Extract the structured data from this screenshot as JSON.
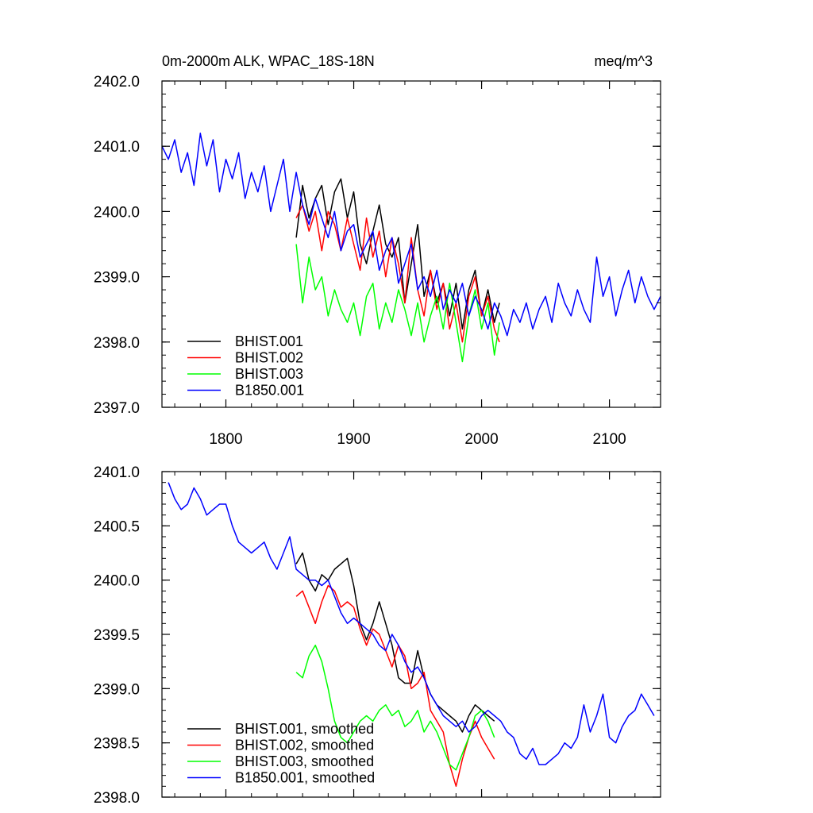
{
  "chart_data": [
    {
      "type": "line",
      "title": "0m-2000m ALK, WPAC_18S-18N",
      "units": "meq/m^3",
      "xlim": [
        1750,
        2140
      ],
      "ylim": [
        2397.0,
        2402.0
      ],
      "x_ticks": [
        1800,
        1900,
        2000,
        2100
      ],
      "x_tick_labels": [
        "1800",
        "1900",
        "2000",
        "2100"
      ],
      "y_ticks": [
        2397.0,
        2398.0,
        2399.0,
        2400.0,
        2401.0,
        2402.0
      ],
      "y_tick_labels": [
        "2397.0",
        "2398.0",
        "2399.0",
        "2400.0",
        "2401.0",
        "2402.0"
      ],
      "legend_position": "bottom-left",
      "series": [
        {
          "name": "BHIST.001",
          "color": "#000000",
          "x": [
            1855,
            1860,
            1865,
            1870,
            1875,
            1880,
            1885,
            1890,
            1895,
            1900,
            1905,
            1910,
            1915,
            1920,
            1925,
            1930,
            1935,
            1940,
            1945,
            1950,
            1955,
            1960,
            1965,
            1970,
            1975,
            1980,
            1985,
            1990,
            1995,
            2000,
            2005,
            2010,
            2014
          ],
          "y": [
            2399.6,
            2400.4,
            2399.9,
            2400.2,
            2400.4,
            2399.8,
            2400.3,
            2400.5,
            2399.9,
            2400.3,
            2399.5,
            2399.2,
            2399.7,
            2400.1,
            2399.5,
            2399.3,
            2399.6,
            2398.6,
            2399.2,
            2399.8,
            2398.7,
            2399.1,
            2398.6,
            2398.9,
            2398.4,
            2398.9,
            2398.2,
            2398.8,
            2399.1,
            2398.4,
            2398.8,
            2398.3,
            2398.6
          ]
        },
        {
          "name": "BHIST.002",
          "color": "#ff0000",
          "x": [
            1855,
            1860,
            1865,
            1870,
            1875,
            1880,
            1885,
            1890,
            1895,
            1900,
            1905,
            1910,
            1915,
            1920,
            1925,
            1930,
            1935,
            1940,
            1945,
            1950,
            1955,
            1960,
            1965,
            1970,
            1975,
            1980,
            1985,
            1990,
            1995,
            2000,
            2005,
            2010,
            2014
          ],
          "y": [
            2399.9,
            2400.1,
            2399.7,
            2400.0,
            2399.4,
            2400.0,
            2399.8,
            2399.4,
            2399.9,
            2399.5,
            2399.1,
            2399.9,
            2399.3,
            2399.7,
            2399.0,
            2399.6,
            2399.2,
            2398.6,
            2399.6,
            2398.8,
            2398.4,
            2399.1,
            2398.5,
            2398.9,
            2398.2,
            2398.6,
            2398.0,
            2398.7,
            2399.0,
            2398.4,
            2398.7,
            2398.2,
            2398.0
          ]
        },
        {
          "name": "BHIST.003",
          "color": "#00ff00",
          "x": [
            1855,
            1860,
            1865,
            1870,
            1875,
            1880,
            1885,
            1890,
            1895,
            1900,
            1905,
            1910,
            1915,
            1920,
            1925,
            1930,
            1935,
            1940,
            1945,
            1950,
            1955,
            1960,
            1965,
            1970,
            1975,
            1980,
            1985,
            1990,
            1995,
            2000,
            2005,
            2010,
            2014
          ],
          "y": [
            2399.5,
            2398.6,
            2399.3,
            2398.8,
            2399.0,
            2398.4,
            2398.8,
            2398.5,
            2398.3,
            2398.6,
            2398.1,
            2398.7,
            2398.9,
            2398.2,
            2398.6,
            2398.3,
            2398.8,
            2398.5,
            2398.1,
            2398.6,
            2398.0,
            2398.4,
            2398.7,
            2398.2,
            2398.9,
            2398.3,
            2397.7,
            2398.4,
            2398.8,
            2398.2,
            2398.6,
            2397.8,
            2398.3
          ]
        },
        {
          "name": "B1850.001",
          "color": "#0000ff",
          "x": [
            1750,
            1755,
            1760,
            1765,
            1770,
            1775,
            1780,
            1785,
            1790,
            1795,
            1800,
            1805,
            1810,
            1815,
            1820,
            1825,
            1830,
            1835,
            1840,
            1845,
            1850,
            1855,
            1860,
            1865,
            1870,
            1875,
            1880,
            1885,
            1890,
            1895,
            1900,
            1905,
            1910,
            1915,
            1920,
            1925,
            1930,
            1935,
            1940,
            1945,
            1950,
            1955,
            1960,
            1965,
            1970,
            1975,
            1980,
            1985,
            1990,
            1995,
            2000,
            2005,
            2010,
            2015,
            2020,
            2025,
            2030,
            2035,
            2040,
            2045,
            2050,
            2055,
            2060,
            2065,
            2070,
            2075,
            2080,
            2085,
            2090,
            2095,
            2100,
            2105,
            2110,
            2115,
            2120,
            2125,
            2130,
            2135,
            2140
          ],
          "y": [
            2401.0,
            2400.8,
            2401.1,
            2400.6,
            2400.9,
            2400.4,
            2401.2,
            2400.7,
            2401.1,
            2400.3,
            2400.8,
            2400.5,
            2400.9,
            2400.2,
            2400.6,
            2400.3,
            2400.7,
            2400.0,
            2400.4,
            2400.8,
            2400.0,
            2400.6,
            2400.1,
            2399.8,
            2400.2,
            2399.9,
            2399.6,
            2400.0,
            2399.4,
            2399.7,
            2399.8,
            2399.3,
            2399.5,
            2399.7,
            2399.1,
            2399.4,
            2399.6,
            2398.9,
            2399.2,
            2399.5,
            2398.8,
            2399.0,
            2398.7,
            2399.1,
            2398.5,
            2398.8,
            2398.6,
            2398.9,
            2398.4,
            2398.7,
            2398.5,
            2398.2,
            2398.6,
            2398.4,
            2398.1,
            2398.5,
            2398.3,
            2398.6,
            2398.2,
            2398.5,
            2398.7,
            2398.3,
            2398.9,
            2398.6,
            2398.4,
            2398.8,
            2398.5,
            2398.3,
            2399.3,
            2398.7,
            2399.0,
            2398.4,
            2398.8,
            2399.1,
            2398.6,
            2399.0,
            2398.7,
            2398.5,
            2398.7
          ]
        }
      ]
    },
    {
      "type": "line",
      "title": "",
      "xlim": [
        1750,
        2140
      ],
      "ylim": [
        2398.0,
        2401.0
      ],
      "x_ticks": [
        1800,
        1900,
        2000,
        2100
      ],
      "y_ticks": [
        2398.0,
        2398.5,
        2399.0,
        2399.5,
        2400.0,
        2400.5,
        2401.0
      ],
      "y_tick_labels": [
        "2398.0",
        "2398.5",
        "2399.0",
        "2399.5",
        "2400.0",
        "2400.5",
        "2401.0"
      ],
      "legend_position": "bottom-left",
      "series": [
        {
          "name": "BHIST.001, smoothed",
          "color": "#000000",
          "x": [
            1855,
            1860,
            1865,
            1870,
            1875,
            1880,
            1885,
            1890,
            1895,
            1900,
            1905,
            1910,
            1915,
            1920,
            1925,
            1930,
            1935,
            1940,
            1945,
            1950,
            1955,
            1960,
            1965,
            1970,
            1975,
            1980,
            1985,
            1990,
            1995,
            2000,
            2005,
            2010
          ],
          "y": [
            2400.15,
            2400.25,
            2400.0,
            2399.9,
            2400.05,
            2400.0,
            2400.1,
            2400.15,
            2400.2,
            2399.95,
            2399.6,
            2399.45,
            2399.6,
            2399.8,
            2399.6,
            2399.4,
            2399.1,
            2399.05,
            2399.05,
            2399.35,
            2399.1,
            2398.95,
            2398.85,
            2398.8,
            2398.75,
            2398.7,
            2398.6,
            2398.75,
            2398.85,
            2398.8,
            2398.75,
            2398.7
          ]
        },
        {
          "name": "BHIST.002, smoothed",
          "color": "#ff0000",
          "x": [
            1855,
            1860,
            1865,
            1870,
            1875,
            1880,
            1885,
            1890,
            1895,
            1900,
            1905,
            1910,
            1915,
            1920,
            1925,
            1930,
            1935,
            1940,
            1945,
            1950,
            1955,
            1960,
            1965,
            1970,
            1975,
            1980,
            1985,
            1990,
            1995,
            2000,
            2005,
            2010
          ],
          "y": [
            2399.85,
            2399.9,
            2399.75,
            2399.6,
            2399.8,
            2399.95,
            2399.9,
            2399.75,
            2399.8,
            2399.75,
            2399.55,
            2399.4,
            2399.55,
            2399.5,
            2399.35,
            2399.2,
            2399.4,
            2399.3,
            2399.0,
            2399.05,
            2399.15,
            2398.8,
            2398.7,
            2398.6,
            2398.3,
            2398.1,
            2398.35,
            2398.55,
            2398.7,
            2398.55,
            2398.45,
            2398.35
          ]
        },
        {
          "name": "BHIST.003, smoothed",
          "color": "#00ff00",
          "x": [
            1855,
            1860,
            1865,
            1870,
            1875,
            1880,
            1885,
            1890,
            1895,
            1900,
            1905,
            1910,
            1915,
            1920,
            1925,
            1930,
            1935,
            1940,
            1945,
            1950,
            1955,
            1960,
            1965,
            1970,
            1975,
            1980,
            1985,
            1990,
            1995,
            2000,
            2005,
            2010
          ],
          "y": [
            2399.15,
            2399.1,
            2399.3,
            2399.4,
            2399.25,
            2399.0,
            2398.7,
            2398.55,
            2398.5,
            2398.6,
            2398.7,
            2398.75,
            2398.7,
            2398.8,
            2398.85,
            2398.75,
            2398.8,
            2398.65,
            2398.7,
            2398.8,
            2398.6,
            2398.7,
            2398.6,
            2398.45,
            2398.3,
            2398.25,
            2398.4,
            2398.55,
            2398.75,
            2398.8,
            2398.7,
            2398.55
          ]
        },
        {
          "name": "B1850.001, smoothed",
          "color": "#0000ff",
          "x": [
            1755,
            1760,
            1765,
            1770,
            1775,
            1780,
            1785,
            1790,
            1795,
            1800,
            1805,
            1810,
            1815,
            1820,
            1825,
            1830,
            1835,
            1840,
            1845,
            1850,
            1855,
            1860,
            1865,
            1870,
            1875,
            1880,
            1885,
            1890,
            1895,
            1900,
            1905,
            1910,
            1915,
            1920,
            1925,
            1930,
            1935,
            1940,
            1945,
            1950,
            1955,
            1960,
            1965,
            1970,
            1975,
            1980,
            1985,
            1990,
            1995,
            2000,
            2005,
            2010,
            2015,
            2020,
            2025,
            2030,
            2035,
            2040,
            2045,
            2050,
            2055,
            2060,
            2065,
            2070,
            2075,
            2080,
            2085,
            2090,
            2095,
            2100,
            2105,
            2110,
            2115,
            2120,
            2125,
            2130,
            2135
          ],
          "y": [
            2400.9,
            2400.75,
            2400.65,
            2400.7,
            2400.85,
            2400.75,
            2400.6,
            2400.65,
            2400.7,
            2400.7,
            2400.5,
            2400.35,
            2400.3,
            2400.25,
            2400.3,
            2400.35,
            2400.2,
            2400.1,
            2400.25,
            2400.4,
            2400.1,
            2400.05,
            2400.0,
            2400.0,
            2399.95,
            2400.0,
            2399.85,
            2399.7,
            2399.6,
            2399.65,
            2399.6,
            2399.55,
            2399.5,
            2399.4,
            2399.35,
            2399.5,
            2399.4,
            2399.25,
            2399.15,
            2399.2,
            2399.1,
            2398.95,
            2398.85,
            2398.75,
            2398.7,
            2398.65,
            2398.7,
            2398.6,
            2398.65,
            2398.75,
            2398.8,
            2398.75,
            2398.7,
            2398.6,
            2398.55,
            2398.4,
            2398.35,
            2398.45,
            2398.3,
            2398.3,
            2398.35,
            2398.4,
            2398.5,
            2398.45,
            2398.55,
            2398.85,
            2398.6,
            2398.75,
            2398.95,
            2398.55,
            2398.5,
            2398.65,
            2398.75,
            2398.8,
            2398.95,
            2398.85,
            2398.75
          ]
        }
      ]
    }
  ]
}
